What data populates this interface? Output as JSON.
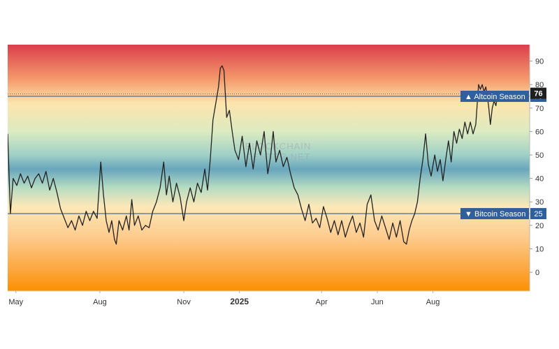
{
  "chart_data": {
    "type": "line",
    "title": "",
    "xlabel": "",
    "ylabel": "",
    "ylim": [
      -8,
      97
    ],
    "y_ticks": [
      0,
      10,
      20,
      30,
      40,
      50,
      60,
      70,
      80,
      90
    ],
    "grid": false,
    "x_tick_labels": [
      {
        "label": "May",
        "date": "2024-05-01"
      },
      {
        "label": "Aug",
        "date": "2024-08-01"
      },
      {
        "label": "Nov",
        "date": "2024-11-01"
      },
      {
        "label": "2025",
        "date": "2025-01-01",
        "bold": true
      },
      {
        "label": "Apr",
        "date": "2025-04-01"
      },
      {
        "label": "Jun",
        "date": "2025-06-01"
      },
      {
        "label": "Aug",
        "date": "2025-08-01"
      }
    ],
    "x_range": [
      "2024-04-22",
      "2025-11-15"
    ],
    "background_gradient": [
      {
        "value": 97,
        "color": "#dc3e4c"
      },
      {
        "value": 82,
        "color": "#f49c6c"
      },
      {
        "value": 72,
        "color": "#fde4ad"
      },
      {
        "value": 60,
        "color": "#dcebc1"
      },
      {
        "value": 50,
        "color": "#9fd0c6"
      },
      {
        "value": 44,
        "color": "#68a6bd"
      },
      {
        "value": 36,
        "color": "#b7dcc2"
      },
      {
        "value": 28,
        "color": "#fde8b8"
      },
      {
        "value": 15,
        "color": "#fdcb8d"
      },
      {
        "value": 0,
        "color": "#fca437"
      },
      {
        "value": -8,
        "color": "#fb9000"
      }
    ],
    "reference_lines": [
      {
        "value": 75,
        "label": "▲ Altcoin Season",
        "tag": "75",
        "color": "#2f5f9c"
      },
      {
        "value": 25,
        "label": "▼ Bitcoin Season",
        "tag": "25",
        "color": "#2f5f9c"
      }
    ],
    "current_value": {
      "value": 76,
      "tag": "76",
      "color": "#1f1f1f"
    },
    "series": [
      {
        "color": "#222222",
        "points": [
          [
            "2024-04-22",
            59
          ],
          [
            "2024-04-25",
            25
          ],
          [
            "2024-04-28",
            40
          ],
          [
            "2024-05-02",
            37
          ],
          [
            "2024-05-06",
            42
          ],
          [
            "2024-05-10",
            38
          ],
          [
            "2024-05-14",
            41
          ],
          [
            "2024-05-18",
            36
          ],
          [
            "2024-05-22",
            40
          ],
          [
            "2024-05-26",
            42
          ],
          [
            "2024-05-30",
            38
          ],
          [
            "2024-06-03",
            43
          ],
          [
            "2024-06-07",
            35
          ],
          [
            "2024-06-11",
            40
          ],
          [
            "2024-06-15",
            34
          ],
          [
            "2024-06-19",
            27
          ],
          [
            "2024-06-23",
            23
          ],
          [
            "2024-06-27",
            19
          ],
          [
            "2024-07-01",
            22
          ],
          [
            "2024-07-05",
            18
          ],
          [
            "2024-07-09",
            24
          ],
          [
            "2024-07-13",
            20
          ],
          [
            "2024-07-17",
            26
          ],
          [
            "2024-07-21",
            22
          ],
          [
            "2024-07-25",
            26
          ],
          [
            "2024-07-29",
            23
          ],
          [
            "2024-08-02",
            47
          ],
          [
            "2024-08-05",
            33
          ],
          [
            "2024-08-08",
            22
          ],
          [
            "2024-08-11",
            17
          ],
          [
            "2024-08-14",
            22
          ],
          [
            "2024-08-17",
            14
          ],
          [
            "2024-08-19",
            12
          ],
          [
            "2024-08-22",
            22
          ],
          [
            "2024-08-26",
            18
          ],
          [
            "2024-08-30",
            24
          ],
          [
            "2024-09-02",
            18
          ],
          [
            "2024-09-05",
            31
          ],
          [
            "2024-09-08",
            20
          ],
          [
            "2024-09-12",
            24
          ],
          [
            "2024-09-16",
            18
          ],
          [
            "2024-09-20",
            20
          ],
          [
            "2024-09-24",
            19
          ],
          [
            "2024-09-28",
            26
          ],
          [
            "2024-10-02",
            30
          ],
          [
            "2024-10-06",
            36
          ],
          [
            "2024-10-10",
            47
          ],
          [
            "2024-10-13",
            33
          ],
          [
            "2024-10-16",
            41
          ],
          [
            "2024-10-20",
            30
          ],
          [
            "2024-10-24",
            38
          ],
          [
            "2024-10-28",
            32
          ],
          [
            "2024-11-01",
            22
          ],
          [
            "2024-11-04",
            30
          ],
          [
            "2024-11-08",
            36
          ],
          [
            "2024-11-12",
            30
          ],
          [
            "2024-11-16",
            38
          ],
          [
            "2024-11-20",
            34
          ],
          [
            "2024-11-24",
            44
          ],
          [
            "2024-11-27",
            35
          ],
          [
            "2024-11-30",
            48
          ],
          [
            "2024-12-03",
            65
          ],
          [
            "2024-12-06",
            72
          ],
          [
            "2024-12-09",
            79
          ],
          [
            "2024-12-11",
            87
          ],
          [
            "2024-12-13",
            88
          ],
          [
            "2024-12-15",
            86
          ],
          [
            "2024-12-18",
            66
          ],
          [
            "2024-12-21",
            69
          ],
          [
            "2024-12-24",
            60
          ],
          [
            "2024-12-27",
            52
          ],
          [
            "2024-12-31",
            48
          ],
          [
            "2025-01-04",
            58
          ],
          [
            "2025-01-08",
            45
          ],
          [
            "2025-01-12",
            55
          ],
          [
            "2025-01-16",
            44
          ],
          [
            "2025-01-20",
            56
          ],
          [
            "2025-01-24",
            50
          ],
          [
            "2025-01-28",
            60
          ],
          [
            "2025-02-01",
            42
          ],
          [
            "2025-02-04",
            49
          ],
          [
            "2025-02-07",
            60
          ],
          [
            "2025-02-10",
            47
          ],
          [
            "2025-02-14",
            52
          ],
          [
            "2025-02-18",
            45
          ],
          [
            "2025-02-22",
            49
          ],
          [
            "2025-02-26",
            42
          ],
          [
            "2025-03-02",
            36
          ],
          [
            "2025-03-06",
            33
          ],
          [
            "2025-03-10",
            27
          ],
          [
            "2025-03-14",
            22
          ],
          [
            "2025-03-18",
            29
          ],
          [
            "2025-03-22",
            21
          ],
          [
            "2025-03-26",
            23
          ],
          [
            "2025-03-30",
            19
          ],
          [
            "2025-04-03",
            28
          ],
          [
            "2025-04-07",
            23
          ],
          [
            "2025-04-11",
            17
          ],
          [
            "2025-04-15",
            22
          ],
          [
            "2025-04-19",
            16
          ],
          [
            "2025-04-23",
            22
          ],
          [
            "2025-04-27",
            15
          ],
          [
            "2025-05-01",
            20
          ],
          [
            "2025-05-05",
            24
          ],
          [
            "2025-05-09",
            17
          ],
          [
            "2025-05-13",
            21
          ],
          [
            "2025-05-17",
            15
          ],
          [
            "2025-05-21",
            29
          ],
          [
            "2025-05-25",
            33
          ],
          [
            "2025-05-29",
            22
          ],
          [
            "2025-06-02",
            18
          ],
          [
            "2025-06-06",
            24
          ],
          [
            "2025-06-10",
            19
          ],
          [
            "2025-06-14",
            14
          ],
          [
            "2025-06-18",
            21
          ],
          [
            "2025-06-22",
            15
          ],
          [
            "2025-06-26",
            22
          ],
          [
            "2025-06-30",
            13
          ],
          [
            "2025-07-03",
            12
          ],
          [
            "2025-07-06",
            18
          ],
          [
            "2025-07-09",
            22
          ],
          [
            "2025-07-12",
            25
          ],
          [
            "2025-07-15",
            30
          ],
          [
            "2025-07-18",
            40
          ],
          [
            "2025-07-21",
            48
          ],
          [
            "2025-07-24",
            59
          ],
          [
            "2025-07-27",
            46
          ],
          [
            "2025-07-30",
            41
          ],
          [
            "2025-08-03",
            50
          ],
          [
            "2025-08-06",
            43
          ],
          [
            "2025-08-09",
            48
          ],
          [
            "2025-08-12",
            39
          ],
          [
            "2025-08-15",
            48
          ],
          [
            "2025-08-18",
            56
          ],
          [
            "2025-08-21",
            47
          ],
          [
            "2025-08-24",
            60
          ],
          [
            "2025-08-27",
            55
          ],
          [
            "2025-08-30",
            61
          ],
          [
            "2025-09-02",
            57
          ],
          [
            "2025-09-05",
            64
          ],
          [
            "2025-09-08",
            59
          ],
          [
            "2025-09-11",
            64
          ],
          [
            "2025-09-14",
            59
          ],
          [
            "2025-09-17",
            63
          ],
          [
            "2025-09-20",
            80
          ],
          [
            "2025-09-22",
            78
          ],
          [
            "2025-09-24",
            80
          ],
          [
            "2025-09-26",
            77
          ],
          [
            "2025-09-28",
            79
          ],
          [
            "2025-10-01",
            71
          ],
          [
            "2025-10-03",
            63
          ],
          [
            "2025-10-05",
            70
          ],
          [
            "2025-10-07",
            73
          ],
          [
            "2025-10-09",
            71
          ],
          [
            "2025-10-11",
            76
          ]
        ]
      }
    ],
    "watermark": [
      "BLOCKCHAIN",
      "CENTER.NET"
    ]
  }
}
